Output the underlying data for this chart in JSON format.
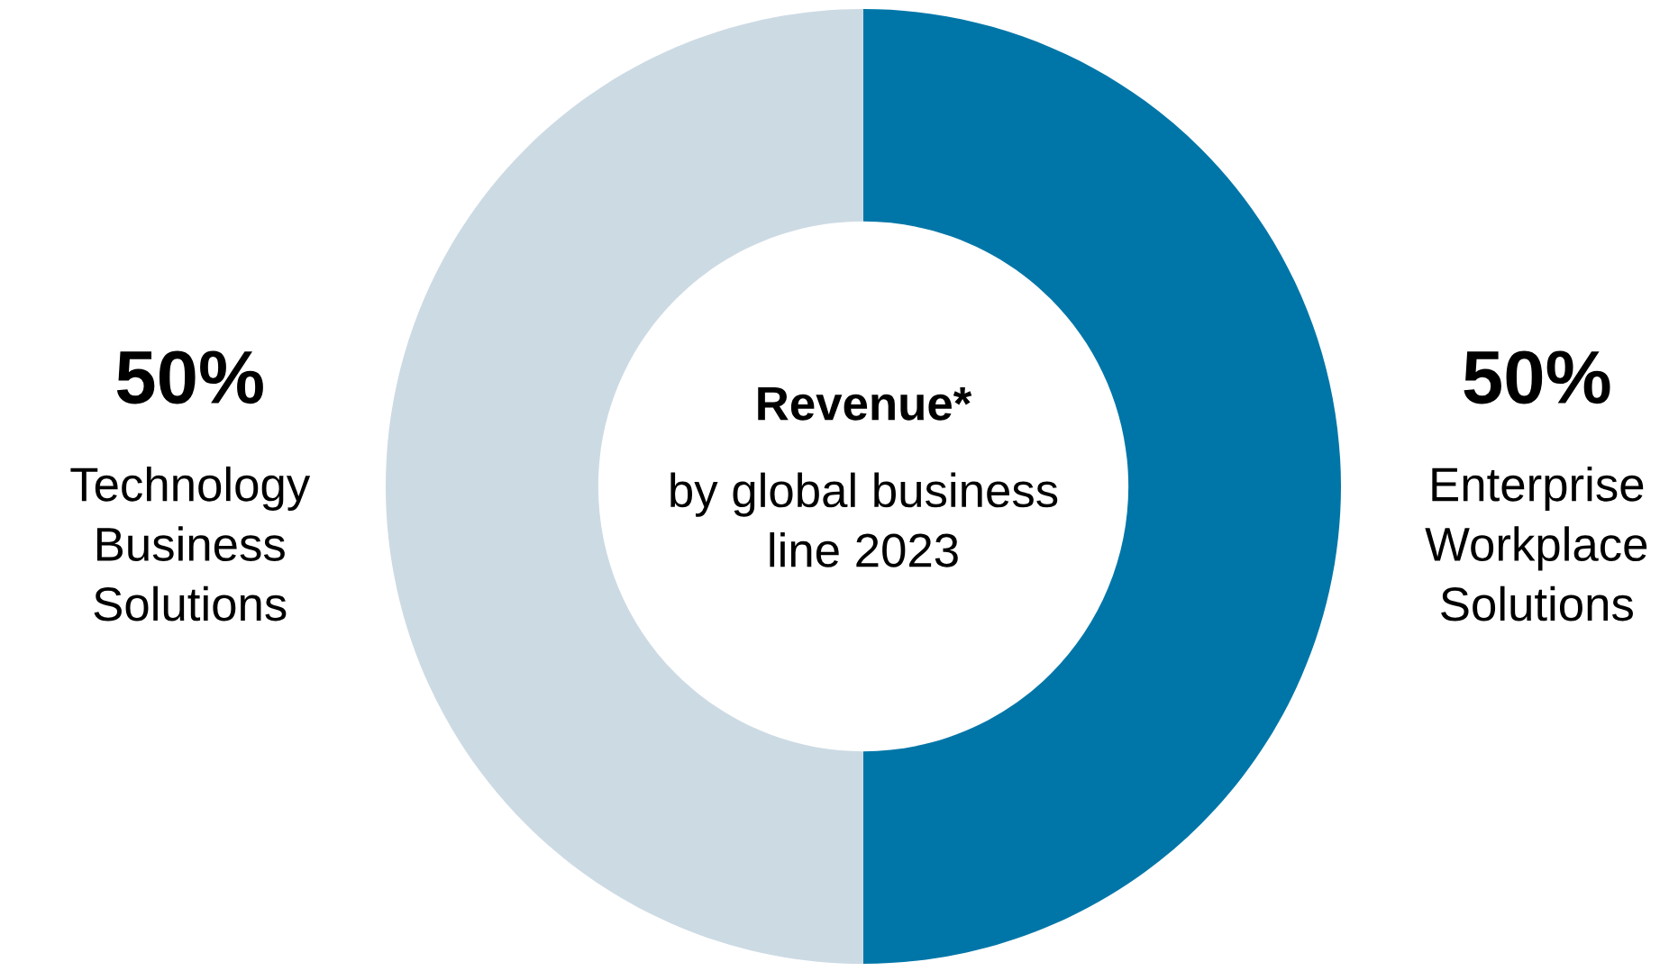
{
  "chart_data": {
    "type": "donut",
    "title": "Revenue*",
    "subtitle": "by global business\nline 2023",
    "categories": [
      "Enterprise\nWorkplace\nSolutions",
      "Technology\nBusiness\nSolutions"
    ],
    "values": [
      50,
      50
    ],
    "colors": [
      "#0076a8",
      "#ccdae3"
    ],
    "value_labels": [
      "50%",
      "50%"
    ],
    "legend": false
  }
}
